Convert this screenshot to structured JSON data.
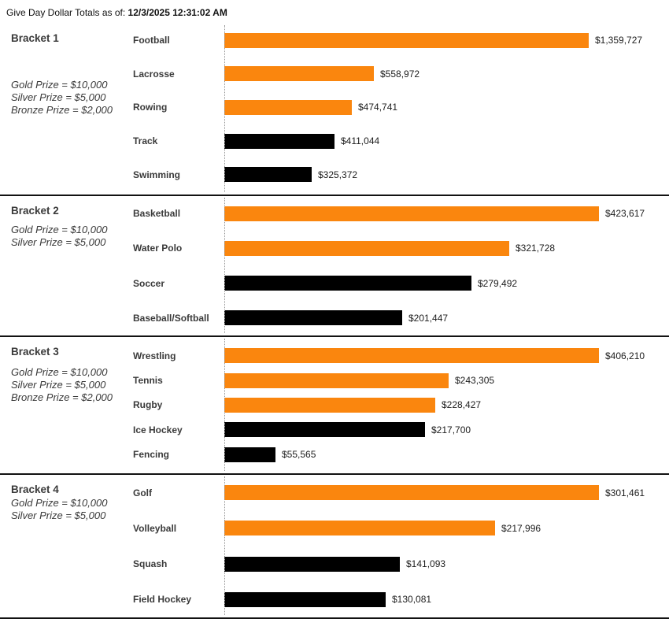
{
  "header": {
    "label": "Give Day Dollar Totals as of:",
    "timestamp": "12/3/2025 12:31:02 AM"
  },
  "colors": {
    "orange": "#FA860E",
    "black": "#000000"
  },
  "chart_data": {
    "type": "bar",
    "orientation": "horizontal",
    "title": "Give Day Dollar Totals as of: 12/3/2025 12:31:02 AM",
    "data_labels": true,
    "axis_ticks": false,
    "scaling": "each bracket scaled independently to its maximum value",
    "brackets": [
      {
        "name": "Bracket 1",
        "prizes": [
          "Gold Prize = $10,000",
          "Silver Prize = $5,000",
          "Bronze Prize = $2,000"
        ],
        "bars": [
          {
            "label": "Football",
            "value": 1359727,
            "display": "$1,359,727",
            "color": "orange"
          },
          {
            "label": "Lacrosse",
            "value": 558972,
            "display": "$558,972",
            "color": "orange"
          },
          {
            "label": "Rowing",
            "value": 474741,
            "display": "$474,741",
            "color": "orange"
          },
          {
            "label": "Track",
            "value": 411044,
            "display": "$411,044",
            "color": "black"
          },
          {
            "label": "Swimming",
            "value": 325372,
            "display": "$325,372",
            "color": "black"
          }
        ]
      },
      {
        "name": "Bracket 2",
        "prizes": [
          "Gold Prize = $10,000",
          "Silver Prize = $5,000"
        ],
        "bars": [
          {
            "label": "Basketball",
            "value": 423617,
            "display": "$423,617",
            "color": "orange"
          },
          {
            "label": "Water Polo",
            "value": 321728,
            "display": "$321,728",
            "color": "orange"
          },
          {
            "label": "Soccer",
            "value": 279492,
            "display": "$279,492",
            "color": "black"
          },
          {
            "label": "Baseball/Softball",
            "value": 201447,
            "display": "$201,447",
            "color": "black"
          }
        ]
      },
      {
        "name": "Bracket 3",
        "prizes": [
          "Gold Prize = $10,000",
          "Silver Prize = $5,000",
          "Bronze Prize = $2,000"
        ],
        "bars": [
          {
            "label": "Wrestling",
            "value": 406210,
            "display": "$406,210",
            "color": "orange"
          },
          {
            "label": "Tennis",
            "value": 243305,
            "display": "$243,305",
            "color": "orange"
          },
          {
            "label": "Rugby",
            "value": 228427,
            "display": "$228,427",
            "color": "orange"
          },
          {
            "label": "Ice Hockey",
            "value": 217700,
            "display": "$217,700",
            "color": "black"
          },
          {
            "label": "Fencing",
            "value": 55565,
            "display": "$55,565",
            "color": "black"
          }
        ]
      },
      {
        "name": "Bracket 4",
        "prizes": [
          "Gold Prize = $10,000",
          "Silver Prize = $5,000"
        ],
        "bars": [
          {
            "label": "Golf",
            "value": 301461,
            "display": "$301,461",
            "color": "orange"
          },
          {
            "label": "Volleyball",
            "value": 217996,
            "display": "$217,996",
            "color": "orange"
          },
          {
            "label": "Squash",
            "value": 141093,
            "display": "$141,093",
            "color": "black"
          },
          {
            "label": "Field Hockey",
            "value": 130081,
            "display": "$130,081",
            "color": "black"
          }
        ]
      }
    ]
  }
}
